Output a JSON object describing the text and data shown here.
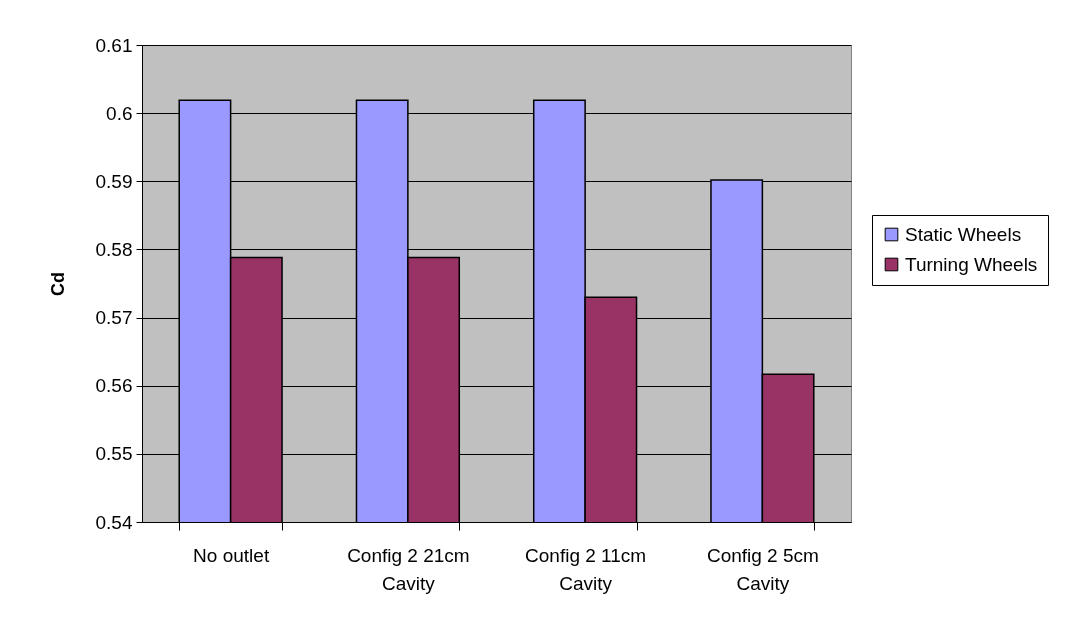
{
  "chart_data": {
    "type": "bar",
    "ylabel": "Cd",
    "categories": [
      "No outlet",
      "Config 2 21cm Cavity",
      "Config 2 11cm Cavity",
      "Config 2 5cm Cavity"
    ],
    "series": [
      {
        "name": "Static Wheels",
        "color": "#9999ff",
        "values": [
          0.6019,
          0.6019,
          0.6019,
          0.5902
        ]
      },
      {
        "name": "Turning Wheels",
        "color": "#993366",
        "values": [
          0.5788,
          0.5788,
          0.573,
          0.5617
        ]
      }
    ],
    "ylim": [
      0.54,
      0.61
    ],
    "yticks": [
      0.54,
      0.55,
      0.56,
      0.57,
      0.58,
      0.59,
      0.6,
      0.61
    ],
    "grid": "y",
    "legend": "right"
  }
}
